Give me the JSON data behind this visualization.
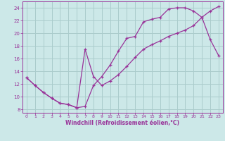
{
  "xlabel": "Windchill (Refroidissement éolien,°C)",
  "bg_color": "#cce8e8",
  "line_color": "#993399",
  "grid_color": "#aacccc",
  "xlim": [
    -0.5,
    23.5
  ],
  "ylim": [
    7.5,
    25.0
  ],
  "xticks": [
    0,
    1,
    2,
    3,
    4,
    5,
    6,
    7,
    8,
    9,
    10,
    11,
    12,
    13,
    14,
    15,
    16,
    17,
    18,
    19,
    20,
    21,
    22,
    23
  ],
  "yticks": [
    8,
    10,
    12,
    14,
    16,
    18,
    20,
    22,
    24
  ],
  "line1_x": [
    0,
    1,
    2,
    3,
    4,
    5,
    6,
    7,
    8,
    9,
    10,
    11,
    12,
    13,
    14,
    15,
    16,
    17,
    18,
    19,
    20,
    21,
    22,
    23
  ],
  "line1_y": [
    13.0,
    11.8,
    10.7,
    9.8,
    9.0,
    8.8,
    8.3,
    8.5,
    11.8,
    13.2,
    15.0,
    17.2,
    19.2,
    19.5,
    21.8,
    22.2,
    22.5,
    23.8,
    24.0,
    24.0,
    23.5,
    22.5,
    19.0,
    16.5
  ],
  "line2_x": [
    0,
    1,
    2,
    3,
    4,
    5,
    6,
    7,
    8,
    9,
    10,
    11,
    12,
    13,
    14,
    15,
    16,
    17,
    18,
    19,
    20,
    21,
    22,
    23
  ],
  "line2_y": [
    13.0,
    11.8,
    10.7,
    9.8,
    9.0,
    8.8,
    8.3,
    17.5,
    13.2,
    11.8,
    12.5,
    13.5,
    14.8,
    16.2,
    17.5,
    18.2,
    18.8,
    19.5,
    20.0,
    20.5,
    21.2,
    22.5,
    23.5,
    24.2
  ]
}
